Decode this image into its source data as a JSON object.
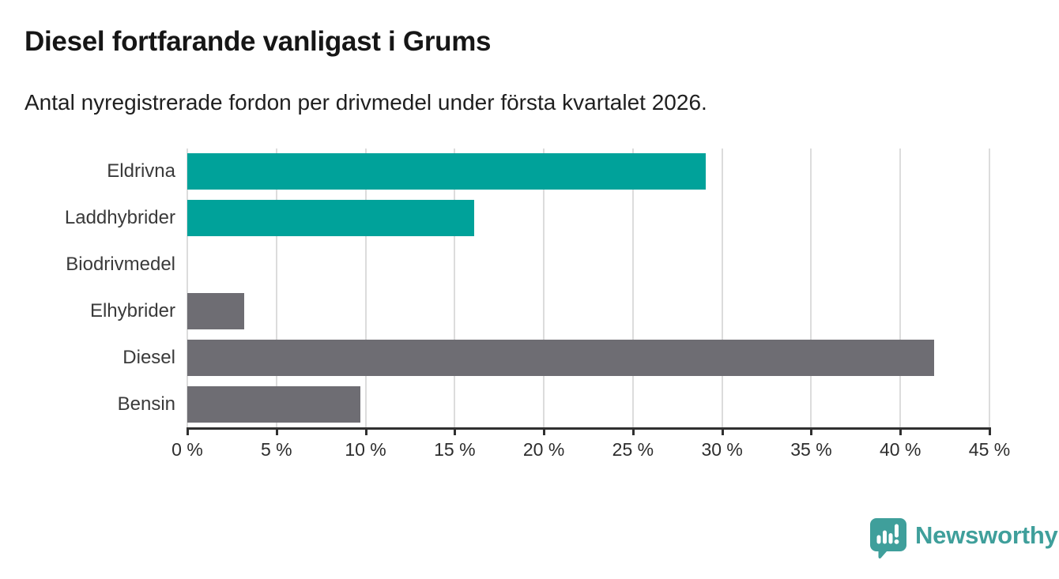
{
  "title": "Diesel fortfarande vanligast i Grums",
  "subtitle": "Antal nyregistrerade fordon per drivmedel under första kvartalet 2026.",
  "branding": {
    "logo_text": "Newsworthy",
    "logo_icon": "newsworthy-speech-bubble-barchart-icon",
    "logo_color": "#3f9f9b"
  },
  "colors": {
    "bar_teal": "#00a29a",
    "bar_gray": "#6e6d73",
    "gridline": "#dcdcdc",
    "axis": "#303030",
    "title_text": "#161616",
    "subtitle_text": "#1f1f1f",
    "category_label_text": "#3a3a3a",
    "tick_label_text": "#2d2d2d"
  },
  "chart_data": {
    "type": "bar",
    "orientation": "horizontal",
    "title": "Diesel fortfarande vanligast i Grums",
    "subtitle": "Antal nyregistrerade fordon per drivmedel under första kvartalet 2026.",
    "categories": [
      "Eldrivna",
      "Laddhybrider",
      "Biodrivmedel",
      "Elhybrider",
      "Diesel",
      "Bensin"
    ],
    "values": [
      29.1,
      16.1,
      0,
      3.2,
      41.9,
      9.7
    ],
    "unit": "%",
    "bar_colors": [
      "#00a29a",
      "#00a29a",
      "#00a29a",
      "#6e6d73",
      "#6e6d73",
      "#6e6d73"
    ],
    "xlim": [
      0,
      45
    ],
    "xticks": [
      0,
      5,
      10,
      15,
      20,
      25,
      30,
      35,
      40,
      45
    ],
    "xtick_labels": [
      "0 %",
      "5 %",
      "10 %",
      "15 %",
      "20 %",
      "25 %",
      "30 %",
      "35 %",
      "40 %",
      "45 %"
    ],
    "xlabel": "",
    "ylabel": "",
    "grid": "vertical-only",
    "legend": "none"
  }
}
